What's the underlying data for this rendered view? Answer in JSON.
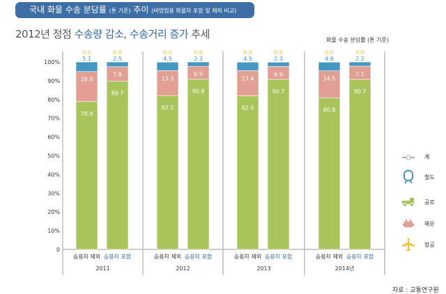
{
  "banner": {
    "title": "국내 화물 수송 분담률",
    "unit": "(톤 기준)",
    "title2": "추이",
    "subtitle": "(비영업용 화물차 포함 및 제외 비교)"
  },
  "headline": {
    "prefix": "2012년 정점 ",
    "highlight": "수송량 감소, 수송거리 증가",
    "suffix": "추세"
  },
  "unit_label": "화물 수송 분담률 (톤 기준)",
  "source": "자료 : 교통연구원",
  "legend": [
    {
      "label": "계",
      "icon": "line-marker-icon"
    },
    {
      "label": "철도",
      "icon": "train-icon"
    },
    {
      "label": "공로",
      "icon": "truck-icon"
    },
    {
      "label": "해운",
      "icon": "ship-icon"
    },
    {
      "label": "항공",
      "icon": "airplane-icon"
    }
  ],
  "colors": {
    "road": "#a8c45a",
    "sea": "#e2a095",
    "rail": "#4597c3",
    "air": "#f5c232"
  },
  "chart_data": {
    "type": "bar",
    "stacked": true,
    "ylim": [
      0,
      100
    ],
    "yticks": [
      "0",
      "10%",
      "20%",
      "30%",
      "40%",
      "50%",
      "60%",
      "70%",
      "80%",
      "90%",
      "100%"
    ],
    "groups": [
      "2011",
      "2012",
      "2013",
      "2014년"
    ],
    "categories": [
      "승용차 제외",
      "승용차 포함"
    ],
    "series": [
      {
        "name": "공로",
        "key": "road",
        "values": [
          [
            78.9,
            89.7
          ],
          [
            82.1,
            90.8
          ],
          [
            82.0,
            90.7
          ],
          [
            80.8,
            90.7
          ]
        ]
      },
      {
        "name": "해운",
        "key": "sea",
        "values": [
          [
            16.0,
            7.8
          ],
          [
            13.3,
            6.9
          ],
          [
            13.4,
            6.9
          ],
          [
            14.5,
            7.1
          ]
        ]
      },
      {
        "name": "철도",
        "key": "rail",
        "values": [
          [
            5.1,
            2.5
          ],
          [
            4.5,
            2.3
          ],
          [
            4.5,
            2.3
          ],
          [
            4.6,
            2.2
          ]
        ]
      },
      {
        "name": "항공",
        "key": "air",
        "values": [
          [
            0.0,
            0.0
          ],
          [
            0.0,
            0.0
          ],
          [
            0.0,
            0.0
          ],
          [
            0.0,
            0.0
          ]
        ]
      }
    ]
  }
}
